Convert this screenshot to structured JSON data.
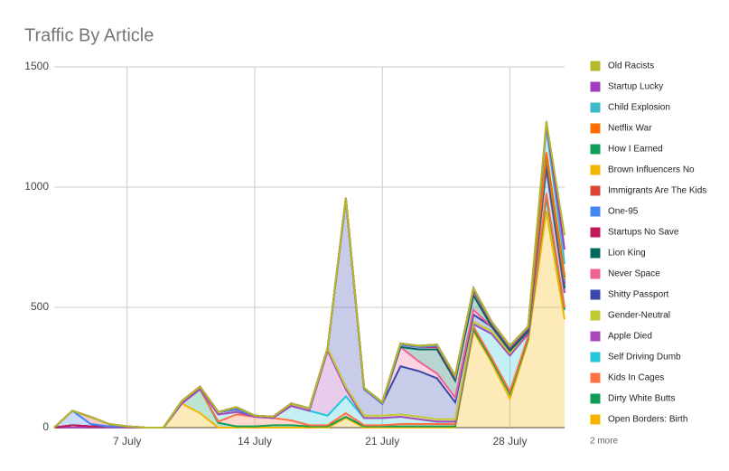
{
  "chart_data": {
    "type": "stacked_area",
    "title": "Traffic By Article",
    "x": [
      3,
      4,
      5,
      6,
      7,
      8,
      9,
      10,
      11,
      12,
      13,
      14,
      15,
      16,
      17,
      18,
      19,
      20,
      21,
      22,
      23,
      24,
      25,
      26,
      27,
      28,
      29,
      30,
      31
    ],
    "xlim": [
      3,
      31
    ],
    "xticks": [
      {
        "value": 7,
        "label": "7 July"
      },
      {
        "value": 14,
        "label": "14 July"
      },
      {
        "value": 21,
        "label": "21 July"
      },
      {
        "value": 28,
        "label": "28 July"
      }
    ],
    "ylim": [
      0,
      1500
    ],
    "yticks": [
      0,
      500,
      1000,
      1500
    ],
    "grid": true,
    "legend_more": "2 more",
    "series": [
      {
        "name": "Old Racists",
        "color": "#b5b82a",
        "values": [
          0,
          0,
          0,
          0,
          0,
          0,
          0,
          0,
          0,
          0,
          0,
          0,
          0,
          0,
          0,
          0,
          0,
          0,
          0,
          0,
          0,
          0,
          0,
          0,
          0,
          0,
          0,
          10,
          60
        ]
      },
      {
        "name": "Startup Lucky",
        "color": "#a23bbd",
        "values": [
          0,
          0,
          0,
          0,
          0,
          0,
          0,
          0,
          0,
          0,
          0,
          0,
          0,
          0,
          0,
          0,
          0,
          0,
          0,
          0,
          0,
          0,
          0,
          0,
          0,
          0,
          0,
          20,
          60
        ]
      },
      {
        "name": "Child Explosion",
        "color": "#3bbac9",
        "values": [
          0,
          0,
          0,
          0,
          0,
          0,
          0,
          0,
          0,
          0,
          0,
          0,
          0,
          0,
          0,
          0,
          0,
          0,
          0,
          0,
          0,
          0,
          0,
          0,
          0,
          0,
          0,
          100,
          50
        ]
      },
      {
        "name": "Netflix War",
        "color": "#ff6d00",
        "values": [
          0,
          0,
          0,
          0,
          0,
          0,
          0,
          0,
          0,
          0,
          0,
          0,
          0,
          0,
          0,
          0,
          0,
          0,
          0,
          0,
          0,
          0,
          0,
          0,
          0,
          0,
          0,
          5,
          5
        ]
      },
      {
        "name": "How I Earned",
        "color": "#0f9d58",
        "values": [
          0,
          0,
          0,
          0,
          0,
          0,
          0,
          0,
          0,
          0,
          0,
          0,
          0,
          0,
          0,
          0,
          0,
          0,
          0,
          0,
          0,
          0,
          0,
          0,
          0,
          0,
          0,
          5,
          5
        ]
      },
      {
        "name": "Brown Influencers No",
        "color": "#f4b400",
        "values": [
          0,
          0,
          0,
          0,
          0,
          0,
          0,
          0,
          0,
          0,
          0,
          0,
          0,
          0,
          0,
          0,
          0,
          0,
          0,
          0,
          0,
          0,
          0,
          0,
          0,
          0,
          0,
          5,
          5
        ]
      },
      {
        "name": "Immigrants Are The Kids",
        "color": "#db4437",
        "values": [
          0,
          0,
          30,
          10,
          0,
          0,
          0,
          0,
          0,
          0,
          10,
          0,
          0,
          0,
          0,
          0,
          5,
          5,
          5,
          5,
          5,
          5,
          5,
          5,
          5,
          5,
          5,
          10,
          10
        ]
      },
      {
        "name": "One-95",
        "color": "#4285f4",
        "values": [
          0,
          60,
          10,
          0,
          0,
          0,
          0,
          0,
          0,
          0,
          0,
          0,
          0,
          0,
          0,
          0,
          0,
          0,
          0,
          0,
          0,
          5,
          5,
          5,
          5,
          5,
          5,
          5,
          5
        ]
      },
      {
        "name": "Startups No Save",
        "color": "#c2185b",
        "values": [
          0,
          0,
          0,
          0,
          0,
          0,
          0,
          0,
          0,
          0,
          0,
          0,
          0,
          0,
          0,
          0,
          0,
          0,
          0,
          10,
          10,
          10,
          10,
          20,
          10,
          10,
          10,
          20,
          20
        ]
      },
      {
        "name": "Lion King",
        "color": "#00695c",
        "values": [
          0,
          0,
          0,
          0,
          0,
          0,
          0,
          0,
          0,
          0,
          0,
          0,
          0,
          0,
          0,
          0,
          0,
          0,
          0,
          0,
          50,
          100,
          70,
          60,
          0,
          0,
          0,
          0,
          0
        ]
      },
      {
        "name": "Never Space",
        "color": "#f06292",
        "values": [
          0,
          0,
          0,
          0,
          0,
          0,
          0,
          0,
          0,
          0,
          0,
          0,
          0,
          0,
          0,
          0,
          0,
          0,
          0,
          80,
          40,
          20,
          20,
          20,
          0,
          0,
          0,
          0,
          0
        ]
      },
      {
        "name": "Shitty Passport",
        "color": "#3949ab",
        "values": [
          0,
          0,
          0,
          0,
          0,
          0,
          0,
          0,
          0,
          0,
          0,
          0,
          0,
          0,
          0,
          0,
          780,
          110,
          50,
          200,
          190,
          170,
          70,
          30,
          20,
          10,
          0,
          0,
          0
        ]
      },
      {
        "name": "Gender-Neutral",
        "color": "#c0ca33",
        "values": [
          0,
          10,
          5,
          5,
          5,
          0,
          0,
          10,
          10,
          10,
          10,
          5,
          5,
          10,
          10,
          10,
          10,
          10,
          10,
          10,
          10,
          10,
          10,
          10,
          10,
          10,
          10,
          20,
          20
        ]
      },
      {
        "name": "Apple Died",
        "color": "#ab47bc",
        "values": [
          0,
          0,
          0,
          0,
          0,
          0,
          0,
          0,
          0,
          0,
          0,
          0,
          0,
          0,
          0,
          270,
          30,
          0,
          0,
          0,
          0,
          0,
          0,
          0,
          0,
          0,
          0,
          0,
          0
        ]
      },
      {
        "name": "Self Driving Dumb",
        "color": "#26c6da",
        "values": [
          0,
          0,
          0,
          0,
          0,
          0,
          0,
          0,
          0,
          30,
          10,
          0,
          0,
          60,
          60,
          40,
          70,
          30,
          30,
          30,
          20,
          10,
          10,
          10,
          100,
          150,
          10,
          100,
          60
        ]
      },
      {
        "name": "Kids In Cages",
        "color": "#ff7043",
        "values": [
          0,
          0,
          0,
          0,
          0,
          0,
          0,
          0,
          0,
          5,
          50,
          40,
          30,
          20,
          5,
          5,
          15,
          5,
          5,
          10,
          10,
          10,
          10,
          10,
          10,
          10,
          10,
          15,
          10
        ]
      },
      {
        "name": "Dirty White Butts",
        "color": "#0f9d58",
        "values": [
          0,
          0,
          0,
          0,
          0,
          0,
          0,
          0,
          100,
          20,
          5,
          5,
          10,
          10,
          5,
          5,
          5,
          5,
          5,
          5,
          5,
          5,
          5,
          10,
          10,
          20,
          10,
          60,
          40
        ]
      },
      {
        "name": "Open Borders: Birth",
        "color": "#f4b400",
        "values": [
          0,
          0,
          0,
          0,
          0,
          0,
          0,
          100,
          60,
          0,
          0,
          0,
          0,
          0,
          0,
          0,
          40,
          0,
          0,
          0,
          0,
          0,
          0,
          400,
          270,
          120,
          360,
          900,
          450
        ]
      }
    ]
  }
}
